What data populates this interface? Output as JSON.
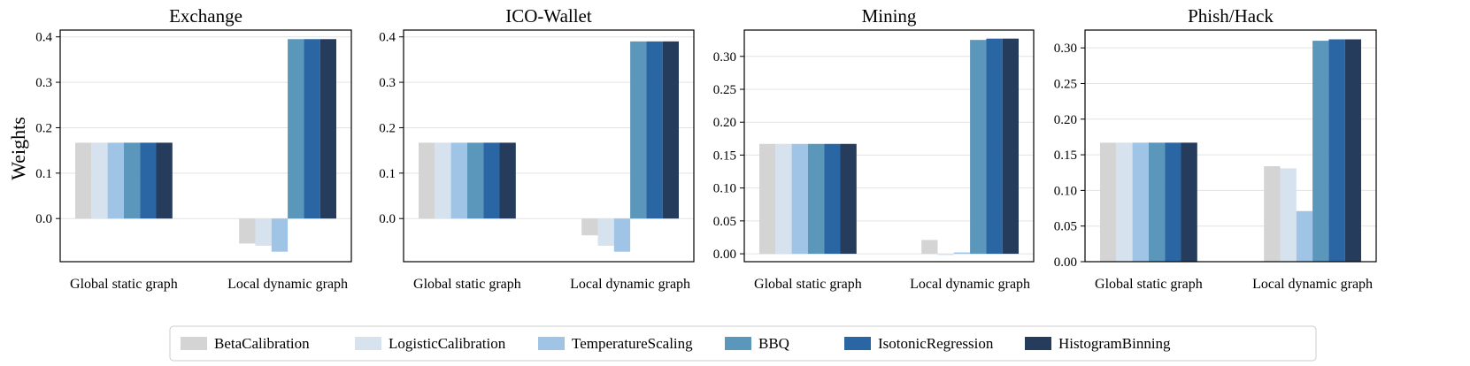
{
  "colors": {
    "BetaCalibration": "#d4d4d4",
    "LogisticCalibration": "#d7e2ef",
    "TemperatureScaling": "#a0c4e6",
    "BBQ": "#5b96bb",
    "IsotonicRegression": "#2a66a3",
    "HistogramBinning": "#263c5c"
  },
  "y_axis_label": "Weights",
  "legend": {
    "placement": "bottom-center",
    "items": [
      "BetaCalibration",
      "LogisticCalibration",
      "TemperatureScaling",
      "BBQ",
      "IsotonicRegression",
      "HistogramBinning"
    ]
  },
  "chart_data": [
    {
      "type": "bar",
      "title": "Exchange",
      "categories": [
        "Global static graph",
        "Local dynamic graph"
      ],
      "ylim": [
        -0.095,
        0.415
      ],
      "yticks": [
        "0.0",
        "0.1",
        "0.2",
        "0.3",
        "0.4"
      ],
      "ytick_values": [
        0.0,
        0.1,
        0.2,
        0.3,
        0.4
      ],
      "grid": true,
      "series": [
        {
          "name": "BetaCalibration",
          "values": [
            0.167,
            -0.055
          ]
        },
        {
          "name": "LogisticCalibration",
          "values": [
            0.167,
            -0.06
          ]
        },
        {
          "name": "TemperatureScaling",
          "values": [
            0.167,
            -0.073
          ]
        },
        {
          "name": "BBQ",
          "values": [
            0.167,
            0.395
          ]
        },
        {
          "name": "IsotonicRegression",
          "values": [
            0.167,
            0.395
          ]
        },
        {
          "name": "HistogramBinning",
          "values": [
            0.167,
            0.395
          ]
        }
      ]
    },
    {
      "type": "bar",
      "title": "ICO-Wallet",
      "categories": [
        "Global static graph",
        "Local dynamic graph"
      ],
      "ylim": [
        -0.095,
        0.415
      ],
      "yticks": [
        "0.0",
        "0.1",
        "0.2",
        "0.3",
        "0.4"
      ],
      "ytick_values": [
        0.0,
        0.1,
        0.2,
        0.3,
        0.4
      ],
      "grid": true,
      "series": [
        {
          "name": "BetaCalibration",
          "values": [
            0.167,
            -0.037
          ]
        },
        {
          "name": "LogisticCalibration",
          "values": [
            0.167,
            -0.06
          ]
        },
        {
          "name": "TemperatureScaling",
          "values": [
            0.167,
            -0.073
          ]
        },
        {
          "name": "BBQ",
          "values": [
            0.167,
            0.39
          ]
        },
        {
          "name": "IsotonicRegression",
          "values": [
            0.167,
            0.39
          ]
        },
        {
          "name": "HistogramBinning",
          "values": [
            0.167,
            0.39
          ]
        }
      ]
    },
    {
      "type": "bar",
      "title": "Mining",
      "categories": [
        "Global static graph",
        "Local dynamic graph"
      ],
      "ylim": [
        -0.012,
        0.34
      ],
      "yticks": [
        "0.00",
        "0.05",
        "0.10",
        "0.15",
        "0.20",
        "0.25",
        "0.30"
      ],
      "ytick_values": [
        0.0,
        0.05,
        0.1,
        0.15,
        0.2,
        0.25,
        0.3
      ],
      "grid": true,
      "series": [
        {
          "name": "BetaCalibration",
          "values": [
            0.167,
            0.021
          ]
        },
        {
          "name": "LogisticCalibration",
          "values": [
            0.167,
            -0.002
          ]
        },
        {
          "name": "TemperatureScaling",
          "values": [
            0.167,
            0.002
          ]
        },
        {
          "name": "BBQ",
          "values": [
            0.167,
            0.325
          ]
        },
        {
          "name": "IsotonicRegression",
          "values": [
            0.167,
            0.327
          ]
        },
        {
          "name": "HistogramBinning",
          "values": [
            0.167,
            0.327
          ]
        }
      ]
    },
    {
      "type": "bar",
      "title": "Phish/Hack",
      "categories": [
        "Global static graph",
        "Local dynamic graph"
      ],
      "ylim": [
        0.0,
        0.325
      ],
      "yticks": [
        "0.00",
        "0.05",
        "0.10",
        "0.15",
        "0.20",
        "0.25",
        "0.30"
      ],
      "ytick_values": [
        0.0,
        0.05,
        0.1,
        0.15,
        0.2,
        0.25,
        0.3
      ],
      "grid": true,
      "series": [
        {
          "name": "BetaCalibration",
          "values": [
            0.167,
            0.134
          ]
        },
        {
          "name": "LogisticCalibration",
          "values": [
            0.167,
            0.131
          ]
        },
        {
          "name": "TemperatureScaling",
          "values": [
            0.167,
            0.071
          ]
        },
        {
          "name": "BBQ",
          "values": [
            0.167,
            0.31
          ]
        },
        {
          "name": "IsotonicRegression",
          "values": [
            0.167,
            0.312
          ]
        },
        {
          "name": "HistogramBinning",
          "values": [
            0.167,
            0.312
          ]
        }
      ]
    }
  ]
}
